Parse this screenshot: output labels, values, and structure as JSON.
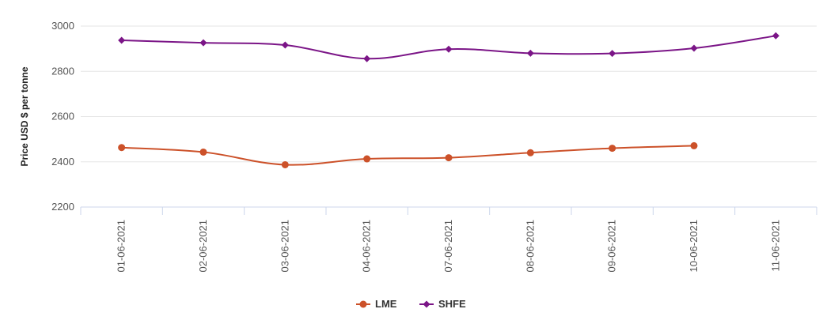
{
  "chart_data": {
    "type": "line",
    "title": "",
    "xlabel": "",
    "ylabel": "Price USD $ per tonne",
    "ylim": [
      2200,
      3000
    ],
    "yticks": [
      2200,
      2400,
      2600,
      2800,
      3000
    ],
    "categories": [
      "01-06-2021",
      "02-06-2021",
      "03-06-2021",
      "04-06-2021",
      "07-06-2021",
      "08-06-2021",
      "09-06-2021",
      "10-06-2021",
      "11-06-2021"
    ],
    "grid": true,
    "legend_position": "bottom-center",
    "series": [
      {
        "name": "LME",
        "color": "#cc5129",
        "marker": "circle",
        "values": [
          2463,
          2443,
          2387,
          2413,
          2418,
          2440,
          2460,
          2471,
          null
        ]
      },
      {
        "name": "SHFE",
        "color": "#7b1587",
        "marker": "diamond",
        "values": [
          2937,
          2926,
          2916,
          2856,
          2898,
          2880,
          2879,
          2902,
          2957
        ]
      }
    ]
  }
}
